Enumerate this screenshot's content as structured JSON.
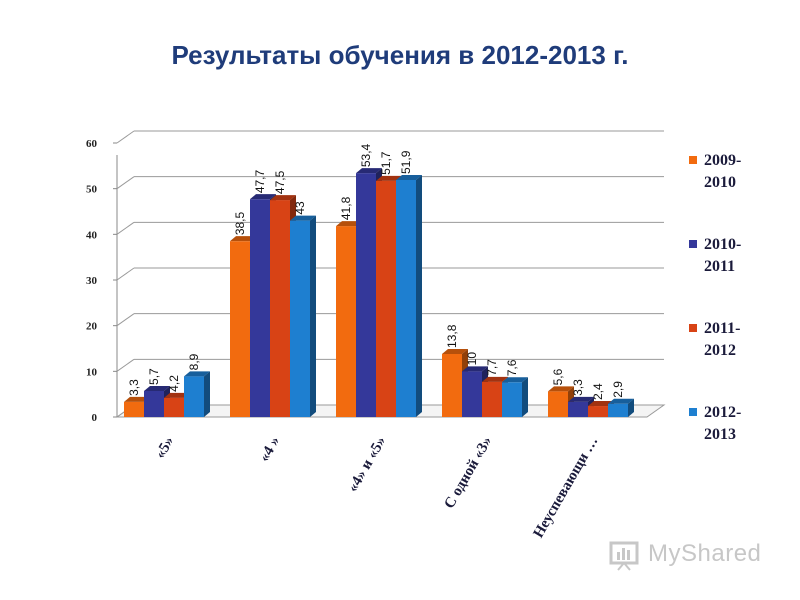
{
  "chart_data": {
    "type": "bar",
    "title": "Результаты обучения в 2012-2013 г.",
    "categories": [
      "«5»",
      "«4 »",
      "«4» и «5»",
      "С одной «3»",
      "Неуспевающи …"
    ],
    "series": [
      {
        "name": "2009-\n2010",
        "values": [
          3.3,
          38.5,
          41.8,
          13.8,
          5.6
        ],
        "labels": [
          "3,3",
          "38,5",
          "41,8",
          "13,8",
          "5,6"
        ],
        "color": "#f26b0f"
      },
      {
        "name": "2010-\n2011",
        "values": [
          5.7,
          47.7,
          53.4,
          10,
          3.3
        ],
        "labels": [
          "5,7",
          "47,7",
          "53,4",
          "10",
          "3,3"
        ],
        "color": "#34389a"
      },
      {
        "name": "2011-\n2012",
        "values": [
          4.2,
          47.5,
          51.7,
          7.7,
          2.4
        ],
        "labels": [
          "4,2",
          "47,5",
          "51,7",
          "7,7",
          "2,4"
        ],
        "color": "#d84315"
      },
      {
        "name": "2012-\n2013",
        "values": [
          8.9,
          43,
          51.9,
          7.6,
          2.9
        ],
        "labels": [
          "8,9",
          "43",
          "51,9",
          "7,6",
          "2,9"
        ],
        "color": "#1e7fd0"
      }
    ],
    "yticks": [
      "0",
      "10",
      "20",
      "30",
      "40",
      "50",
      "60"
    ],
    "ylim": [
      0,
      60
    ],
    "grid": true,
    "legend": "right",
    "three_d": true
  },
  "watermark": {
    "text": "MyShared"
  }
}
